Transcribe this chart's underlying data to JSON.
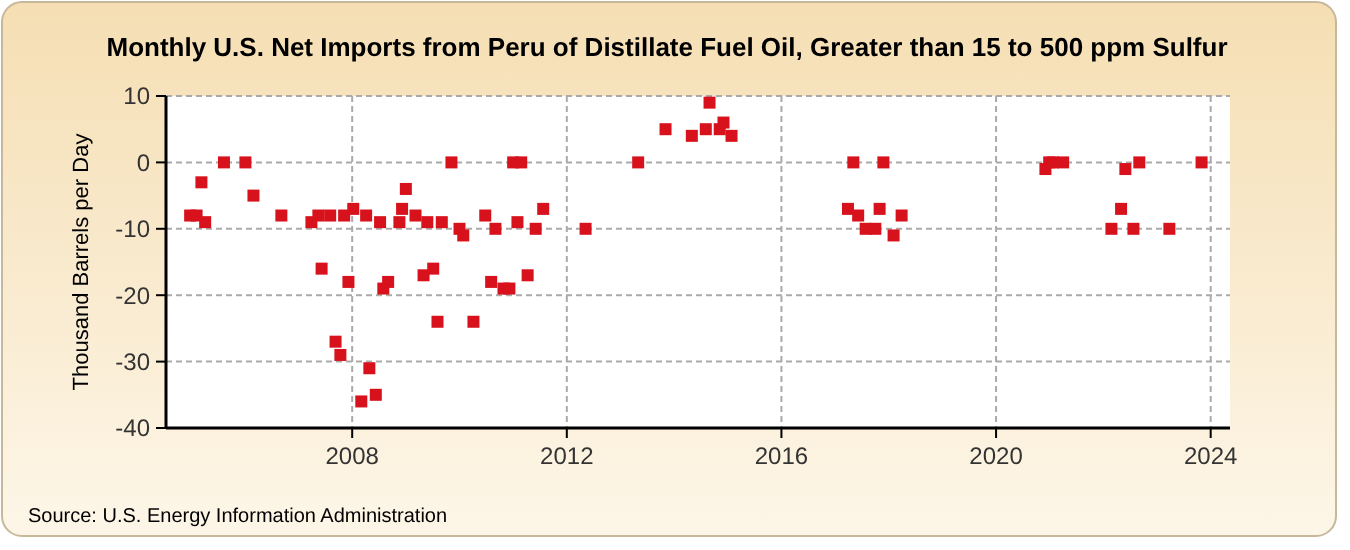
{
  "chart_data": {
    "type": "scatter",
    "title": "Monthly U.S. Net Imports from Peru of Distillate Fuel Oil, Greater than 15 to 500 ppm Sulfur",
    "ylabel": "Thousand Barrels per Day",
    "annotations": [
      "Source: U.S. Energy Information Administration"
    ],
    "x": [
      2004.98,
      2005.1,
      2005.19,
      2005.26,
      2005.61,
      2006.01,
      2006.16,
      2006.68,
      2007.24,
      2007.37,
      2007.43,
      2007.59,
      2007.69,
      2007.78,
      2007.85,
      2007.93,
      2008.02,
      2008.17,
      2008.26,
      2008.32,
      2008.44,
      2008.52,
      2008.58,
      2008.67,
      2008.88,
      2008.93,
      2009.0,
      2009.18,
      2009.33,
      2009.4,
      2009.51,
      2009.59,
      2009.67,
      2009.85,
      2010.0,
      2010.07,
      2010.26,
      2010.48,
      2010.59,
      2010.67,
      2010.82,
      2010.93,
      2011.0,
      2011.08,
      2011.15,
      2011.27,
      2011.42,
      2011.56,
      2012.35,
      2013.33,
      2013.84,
      2014.33,
      2014.59,
      2014.66,
      2014.85,
      2014.92,
      2015.07,
      2017.24,
      2017.34,
      2017.43,
      2017.57,
      2017.75,
      2017.83,
      2017.9,
      2018.09,
      2018.24,
      2020.92,
      2020.99,
      2021.06,
      2021.25,
      2022.15,
      2022.33,
      2022.41,
      2022.56,
      2022.67,
      2023.23,
      2023.83
    ],
    "series": [
      {
        "color": "#d7121c",
        "values": [
          -8,
          -8,
          -3,
          -9,
          0,
          0,
          -5,
          -8,
          -9,
          -8,
          -16,
          -8,
          -27,
          -29,
          -8,
          -18,
          -7,
          -36,
          -8,
          -31,
          -35,
          -9,
          -19,
          -18,
          -9,
          -7,
          -4,
          -8,
          -17,
          -9,
          -16,
          -24,
          -9,
          0,
          -10,
          -11,
          -24,
          -8,
          -18,
          -10,
          -19,
          -19,
          0,
          -9,
          0,
          -17,
          -10,
          -7,
          -10,
          0,
          5,
          4,
          5,
          9,
          5,
          6,
          4,
          -7,
          0,
          -8,
          -10,
          -10,
          -7,
          0,
          -11,
          -8,
          -1,
          0,
          0,
          0,
          -10,
          -7,
          -1,
          -10,
          0,
          -10,
          0
        ]
      }
    ],
    "xlim": [
      2004.53,
      2024.36
    ],
    "xticks": [
      2008,
      2012,
      2016,
      2020,
      2024
    ],
    "ylim": [
      -40,
      10
    ],
    "yticks": [
      10,
      0,
      -10,
      -20,
      -30,
      -40
    ],
    "grid": true,
    "marker": "square"
  }
}
